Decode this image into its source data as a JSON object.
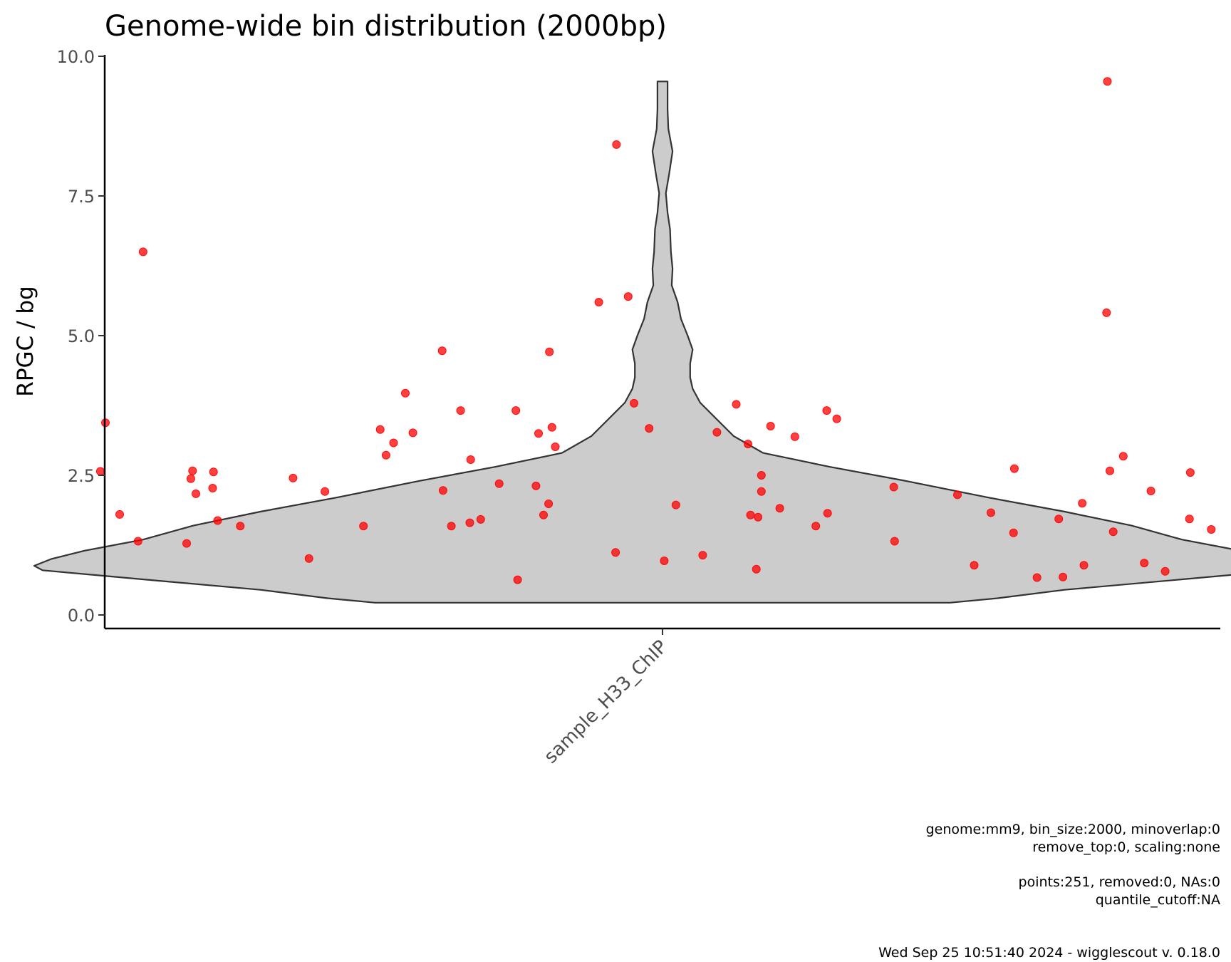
{
  "chart_data": {
    "type": "violin",
    "title": "Genome-wide bin distribution (2000bp)",
    "xlabel": "",
    "ylabel": "RPGC / bg",
    "ylim": [
      0,
      10
    ],
    "yticks": [
      "0.0",
      "2.5",
      "5.0",
      "7.5",
      "10.0"
    ],
    "categories": [
      "sample_H33_ChIP"
    ],
    "point_color": "#ff0000",
    "violin_fill": "#cccccc",
    "violin_outline": "#333333",
    "grid": false,
    "violin_profile": [
      {
        "y": 0.22,
        "hw": 0.343
      },
      {
        "y": 0.3,
        "hw": 0.4
      },
      {
        "y": 0.45,
        "hw": 0.48
      },
      {
        "y": 0.65,
        "hw": 0.63
      },
      {
        "y": 0.8,
        "hw": 0.74
      },
      {
        "y": 0.88,
        "hw": 0.75
      },
      {
        "y": 1.0,
        "hw": 0.73
      },
      {
        "y": 1.15,
        "hw": 0.69
      },
      {
        "y": 1.35,
        "hw": 0.62
      },
      {
        "y": 1.6,
        "hw": 0.56
      },
      {
        "y": 1.85,
        "hw": 0.48
      },
      {
        "y": 2.1,
        "hw": 0.39
      },
      {
        "y": 2.4,
        "hw": 0.29
      },
      {
        "y": 2.65,
        "hw": 0.2
      },
      {
        "y": 2.9,
        "hw": 0.12
      },
      {
        "y": 3.2,
        "hw": 0.085
      },
      {
        "y": 3.5,
        "hw": 0.065
      },
      {
        "y": 3.8,
        "hw": 0.045
      },
      {
        "y": 4.05,
        "hw": 0.036
      },
      {
        "y": 4.25,
        "hw": 0.033
      },
      {
        "y": 4.5,
        "hw": 0.033
      },
      {
        "y": 4.75,
        "hw": 0.036
      },
      {
        "y": 5.0,
        "hw": 0.03
      },
      {
        "y": 5.3,
        "hw": 0.022
      },
      {
        "y": 5.6,
        "hw": 0.018
      },
      {
        "y": 5.9,
        "hw": 0.011
      },
      {
        "y": 6.2,
        "hw": 0.012
      },
      {
        "y": 6.5,
        "hw": 0.01
      },
      {
        "y": 6.9,
        "hw": 0.009
      },
      {
        "y": 7.2,
        "hw": 0.006
      },
      {
        "y": 7.55,
        "hw": 0.004
      },
      {
        "y": 7.9,
        "hw": 0.008
      },
      {
        "y": 8.3,
        "hw": 0.012
      },
      {
        "y": 8.7,
        "hw": 0.007
      },
      {
        "y": 9.05,
        "hw": 0.006
      },
      {
        "y": 9.3,
        "hw": 0.006
      },
      {
        "y": 9.55,
        "hw": 0.006
      }
    ],
    "points": [
      {
        "x": -0.665,
        "y": 3.44
      },
      {
        "x": -0.671,
        "y": 2.57
      },
      {
        "x": -0.648,
        "y": 1.8
      },
      {
        "x": -0.626,
        "y": 1.32
      },
      {
        "x": -0.62,
        "y": 6.5
      },
      {
        "x": -0.568,
        "y": 1.28
      },
      {
        "x": -0.563,
        "y": 2.44
      },
      {
        "x": -0.557,
        "y": 2.17
      },
      {
        "x": -0.561,
        "y": 2.58
      },
      {
        "x": -0.536,
        "y": 2.56
      },
      {
        "x": -0.537,
        "y": 2.27
      },
      {
        "x": -0.531,
        "y": 1.69
      },
      {
        "x": -0.504,
        "y": 1.59
      },
      {
        "x": -0.441,
        "y": 2.45
      },
      {
        "x": -0.422,
        "y": 1.01
      },
      {
        "x": -0.403,
        "y": 2.21
      },
      {
        "x": -0.357,
        "y": 1.59
      },
      {
        "x": -0.337,
        "y": 3.32
      },
      {
        "x": -0.33,
        "y": 2.86
      },
      {
        "x": -0.321,
        "y": 3.08
      },
      {
        "x": -0.307,
        "y": 3.97
      },
      {
        "x": -0.298,
        "y": 3.26
      },
      {
        "x": -0.263,
        "y": 4.73
      },
      {
        "x": -0.262,
        "y": 2.23
      },
      {
        "x": -0.252,
        "y": 1.59
      },
      {
        "x": -0.241,
        "y": 3.66
      },
      {
        "x": -0.229,
        "y": 2.78
      },
      {
        "x": -0.23,
        "y": 1.65
      },
      {
        "x": -0.217,
        "y": 1.71
      },
      {
        "x": -0.195,
        "y": 2.35
      },
      {
        "x": -0.175,
        "y": 3.66
      },
      {
        "x": -0.173,
        "y": 0.63
      },
      {
        "x": -0.151,
        "y": 2.31
      },
      {
        "x": -0.148,
        "y": 3.25
      },
      {
        "x": -0.142,
        "y": 1.79
      },
      {
        "x": -0.136,
        "y": 1.99
      },
      {
        "x": -0.135,
        "y": 4.71
      },
      {
        "x": -0.132,
        "y": 3.36
      },
      {
        "x": -0.128,
        "y": 3.01
      },
      {
        "x": -0.076,
        "y": 5.6
      },
      {
        "x": -0.055,
        "y": 8.42
      },
      {
        "x": -0.056,
        "y": 1.12
      },
      {
        "x": -0.041,
        "y": 5.7
      },
      {
        "x": -0.034,
        "y": 3.79
      },
      {
        "x": -0.016,
        "y": 3.34
      },
      {
        "x": 0.002,
        "y": 0.97
      },
      {
        "x": 0.016,
        "y": 1.97
      },
      {
        "x": 0.048,
        "y": 1.07
      },
      {
        "x": 0.065,
        "y": 3.27
      },
      {
        "x": 0.088,
        "y": 3.77
      },
      {
        "x": 0.102,
        "y": 3.06
      },
      {
        "x": 0.105,
        "y": 1.79
      },
      {
        "x": 0.112,
        "y": 0.82
      },
      {
        "x": 0.114,
        "y": 1.75
      },
      {
        "x": 0.118,
        "y": 2.5
      },
      {
        "x": 0.118,
        "y": 2.21
      },
      {
        "x": 0.129,
        "y": 3.38
      },
      {
        "x": 0.14,
        "y": 1.91
      },
      {
        "x": 0.158,
        "y": 3.19
      },
      {
        "x": 0.183,
        "y": 1.59
      },
      {
        "x": 0.196,
        "y": 3.66
      },
      {
        "x": 0.197,
        "y": 1.82
      },
      {
        "x": 0.208,
        "y": 3.51
      },
      {
        "x": 0.276,
        "y": 2.29
      },
      {
        "x": 0.277,
        "y": 1.32
      },
      {
        "x": 0.352,
        "y": 2.15
      },
      {
        "x": 0.372,
        "y": 0.89
      },
      {
        "x": 0.392,
        "y": 1.83
      },
      {
        "x": 0.419,
        "y": 1.47
      },
      {
        "x": 0.42,
        "y": 2.62
      },
      {
        "x": 0.447,
        "y": 0.67
      },
      {
        "x": 0.473,
        "y": 1.72
      },
      {
        "x": 0.478,
        "y": 0.68
      },
      {
        "x": 0.501,
        "y": 2.0
      },
      {
        "x": 0.503,
        "y": 0.89
      },
      {
        "x": 0.531,
        "y": 9.55
      },
      {
        "x": 0.534,
        "y": 2.58
      },
      {
        "x": 0.538,
        "y": 1.49
      },
      {
        "x": 0.53,
        "y": 5.41
      },
      {
        "x": 0.55,
        "y": 2.84
      },
      {
        "x": 0.575,
        "y": 0.93
      },
      {
        "x": 0.583,
        "y": 2.22
      },
      {
        "x": 0.6,
        "y": 0.78
      },
      {
        "x": 0.63,
        "y": 2.55
      },
      {
        "x": 0.629,
        "y": 1.72
      },
      {
        "x": 0.655,
        "y": 1.53
      }
    ]
  },
  "caption": {
    "line1": "genome:mm9, bin_size:2000, minoverlap:0",
    "line2": "remove_top:0, scaling:none",
    "line3": "points:251, removed:0, NAs:0",
    "line4": "quantile_cutoff:NA",
    "line5": "Wed Sep 25 10:51:40 2024 - wigglescout v. 0.18.0"
  }
}
